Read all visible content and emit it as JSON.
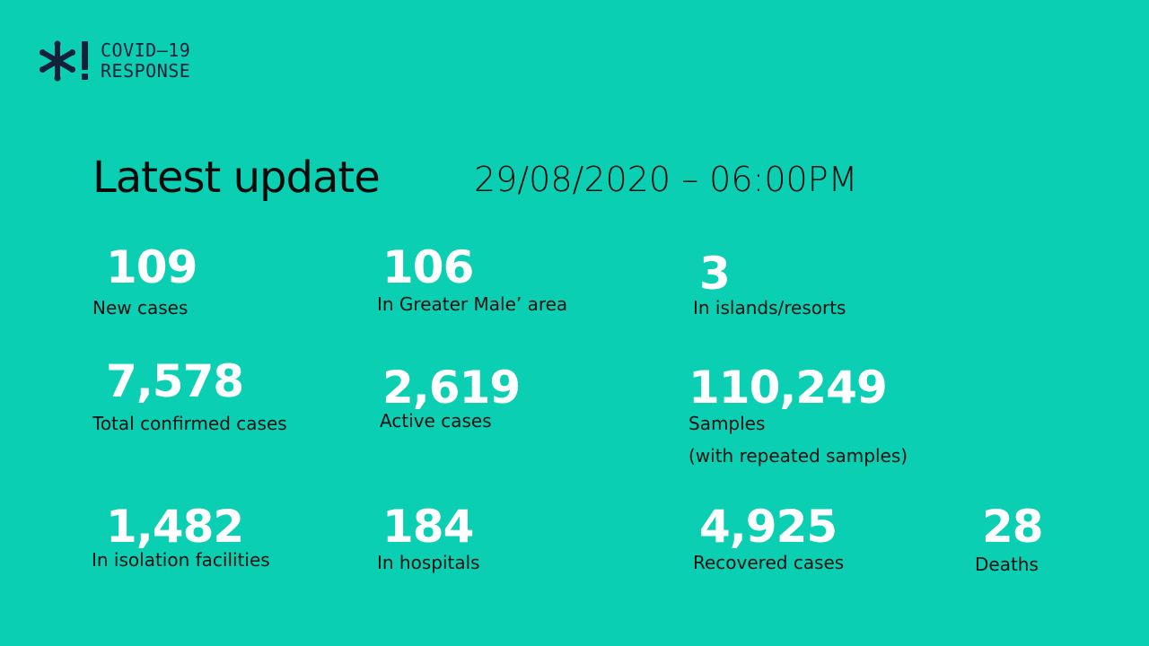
{
  "logo": {
    "icon": "asterisk-exclamation-icon",
    "line1": "COVID–19",
    "line2": "RESPONSE",
    "color": "#14213a"
  },
  "header": {
    "title": "Latest update",
    "timestamp": "29/08/2020 – 06:00PM"
  },
  "stats": {
    "new_cases": {
      "value": "109",
      "label": "New cases"
    },
    "greater_male": {
      "value": "106",
      "label": "In Greater Male’ area"
    },
    "islands_resorts": {
      "value": "3",
      "label": "In islands/resorts"
    },
    "total_confirmed": {
      "value": "7,578",
      "label": "Total confirmed cases"
    },
    "active": {
      "value": "2,619",
      "label": "Active cases"
    },
    "samples": {
      "value": "110,249",
      "label": "Samples",
      "note": "(with repeated samples)"
    },
    "isolation": {
      "value": "1,482",
      "label": "In isolation facilities"
    },
    "hospitals": {
      "value": "184",
      "label": "In hospitals"
    },
    "recovered": {
      "value": "4,925",
      "label": "Recovered cases"
    },
    "deaths": {
      "value": "28",
      "label": "Deaths"
    }
  },
  "colors": {
    "background": "#0bcfb3",
    "number": "#ffffff",
    "text": "#111111"
  }
}
